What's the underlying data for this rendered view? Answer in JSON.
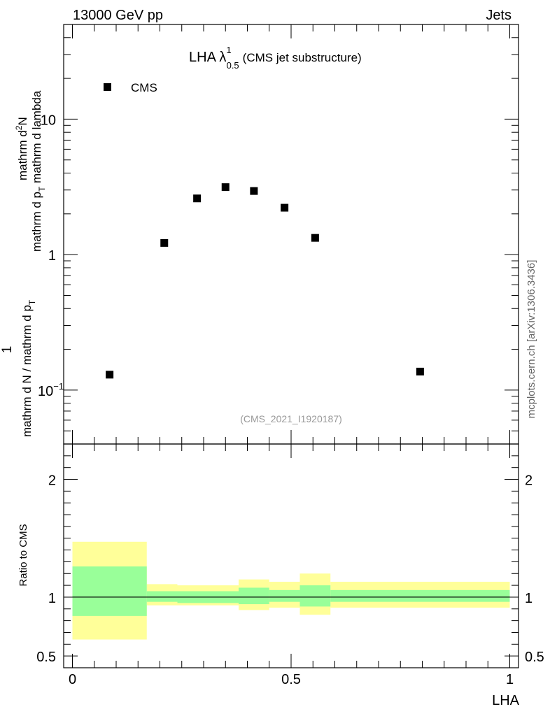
{
  "header": {
    "left": "13000 GeV pp",
    "right": "Jets"
  },
  "title": {
    "prefix": "LHA λ",
    "sup": "1",
    "sub": "0.5",
    "suffix": "(CMS jet substructure)"
  },
  "analysis_id": "(CMS_2021_I1920187)",
  "side_label": "mcplots.cern.ch [arXiv:1306.3436]",
  "colors": {
    "band_inner": "#99ff99",
    "band_outer": "#ffff99",
    "marker": "#000000"
  },
  "chart_data": [
    {
      "type": "scatter",
      "ylabel": {
        "numerator": "1",
        "denominator": "mathrm d N / mathrm d p",
        "denominator_sub": "T",
        "numerator2": "mathrm d",
        "numerator2_sup": "2",
        "numerator2_rest": "N",
        "denominator2": "mathrm d p",
        "denominator2_sub": "T",
        "denominator2_rest": " mathrm d lambda"
      },
      "y_log": true,
      "ylim": [
        0.04,
        50
      ],
      "y_ticks": [
        {
          "value": 0.1,
          "label": "10",
          "sup": "−1"
        },
        {
          "value": 1,
          "label": "1",
          "sup": ""
        },
        {
          "value": 10,
          "label": "10",
          "sup": ""
        }
      ],
      "xlim": [
        -0.02,
        1.02
      ],
      "legend": {
        "label": "CMS",
        "placement": "top-left"
      },
      "series": [
        {
          "name": "CMS",
          "x": [
            0.085,
            0.21,
            0.285,
            0.35,
            0.415,
            0.485,
            0.555,
            0.795
          ],
          "y": [
            0.13,
            1.22,
            2.6,
            3.15,
            2.95,
            2.22,
            1.33,
            0.137
          ]
        }
      ]
    },
    {
      "type": "area",
      "ylabel": "Ratio to CMS",
      "xlabel": "LHA",
      "ylim": [
        0.4,
        2.3
      ],
      "xlim": [
        -0.02,
        1.02
      ],
      "y_ticks": [
        {
          "value": 0.5,
          "label": "0.5"
        },
        {
          "value": 1,
          "label": "1"
        },
        {
          "value": 2,
          "label": "2"
        }
      ],
      "x_ticks": [
        {
          "value": 0,
          "label": "0"
        },
        {
          "value": 0.5,
          "label": "0.5"
        },
        {
          "value": 1,
          "label": "1"
        }
      ],
      "reference_line": 1,
      "bins": [
        {
          "x0": 0.0,
          "x1": 0.17,
          "inner": [
            0.84,
            1.26
          ],
          "outer": [
            0.64,
            1.47
          ]
        },
        {
          "x0": 0.17,
          "x1": 0.24,
          "inner": [
            0.96,
            1.05
          ],
          "outer": [
            0.93,
            1.11
          ]
        },
        {
          "x0": 0.24,
          "x1": 0.38,
          "inner": [
            0.95,
            1.05
          ],
          "outer": [
            0.93,
            1.1
          ]
        },
        {
          "x0": 0.38,
          "x1": 0.45,
          "inner": [
            0.94,
            1.08
          ],
          "outer": [
            0.89,
            1.15
          ]
        },
        {
          "x0": 0.45,
          "x1": 0.52,
          "inner": [
            0.96,
            1.06
          ],
          "outer": [
            0.91,
            1.13
          ]
        },
        {
          "x0": 0.52,
          "x1": 0.59,
          "inner": [
            0.92,
            1.1
          ],
          "outer": [
            0.85,
            1.2
          ]
        },
        {
          "x0": 0.59,
          "x1": 1.0,
          "inner": [
            0.96,
            1.06
          ],
          "outer": [
            0.91,
            1.13
          ]
        }
      ]
    }
  ]
}
